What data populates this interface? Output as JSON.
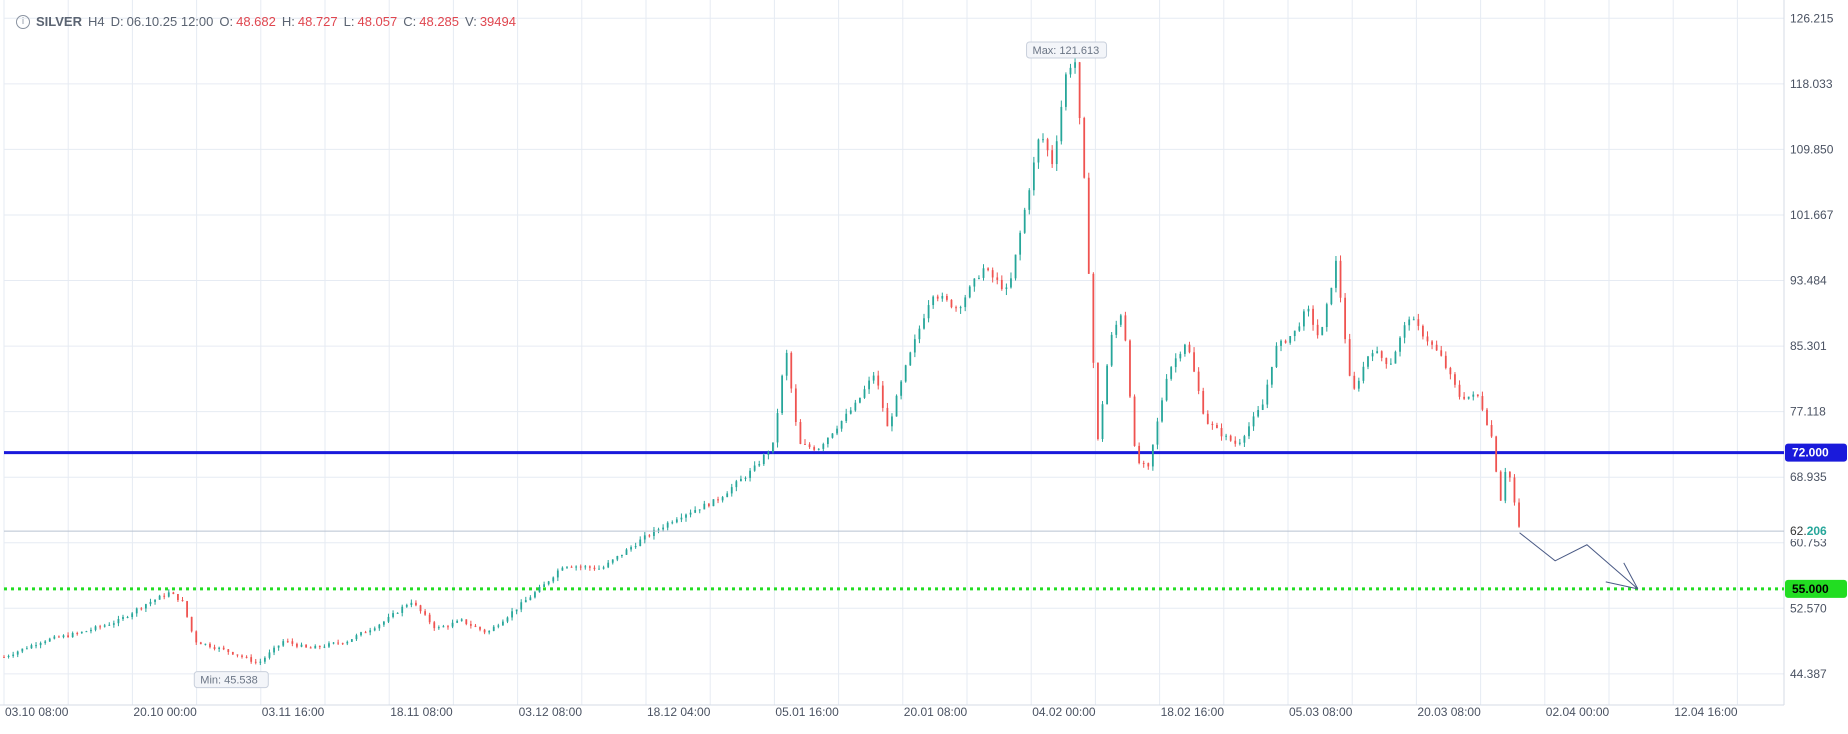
{
  "header": {
    "info_icon": "i",
    "symbol": "SILVER",
    "timeframe": "H4",
    "date_label": "D:",
    "date_value": "06.10.25 12:00",
    "open_label": "O:",
    "open_value": "48.682",
    "high_label": "H:",
    "high_value": "48.727",
    "low_label": "L:",
    "low_value": "48.057",
    "close_label": "C:",
    "close_value": "48.285",
    "volume_label": "V:",
    "volume_value": "39494"
  },
  "colors": {
    "up": "#26a69a",
    "down": "#ef5350",
    "grid": "#e6ebf3",
    "resistance": "#1a1adb",
    "target": "#22dd22",
    "arrow": "#4a5a85"
  },
  "chart_data": {
    "type": "candlestick",
    "symbol": "SILVER",
    "timeframe": "H4",
    "x_tick_labels": [
      "03.10 08:00",
      "20.10 00:00",
      "03.11 16:00",
      "18.11 08:00",
      "03.12 08:00",
      "18.12 04:00",
      "05.01 16:00",
      "20.01 08:00",
      "04.02 00:00",
      "18.02 16:00",
      "05.03 08:00",
      "20.03 08:00",
      "02.04 00:00",
      "12.04 16:00"
    ],
    "y_tick_labels": [
      "126.215",
      "118.033",
      "109.850",
      "101.667",
      "93.484",
      "85.301",
      "77.118",
      "68.935",
      "60.753",
      "52.570",
      "44.387"
    ],
    "ylim": [
      40.5,
      128.5
    ],
    "grid": true,
    "price_path": [
      {
        "t": 0,
        "p": 46.5
      },
      {
        "t": 3,
        "p": 48.5
      },
      {
        "t": 6,
        "p": 49.5
      },
      {
        "t": 9,
        "p": 51.0
      },
      {
        "t": 11,
        "p": 53.0
      },
      {
        "t": 13,
        "p": 54.5
      },
      {
        "t": 14,
        "p": 53.5
      },
      {
        "t": 15,
        "p": 48.5
      },
      {
        "t": 18,
        "p": 47.0
      },
      {
        "t": 20,
        "p": 45.7
      },
      {
        "t": 22,
        "p": 48.5
      },
      {
        "t": 24,
        "p": 47.5
      },
      {
        "t": 27,
        "p": 48.5
      },
      {
        "t": 30,
        "p": 51.0
      },
      {
        "t": 32,
        "p": 53.5
      },
      {
        "t": 34,
        "p": 50.0
      },
      {
        "t": 36,
        "p": 51.0
      },
      {
        "t": 38,
        "p": 49.5
      },
      {
        "t": 41,
        "p": 53.5
      },
      {
        "t": 42.5,
        "p": 55.5
      },
      {
        "t": 44,
        "p": 58.0
      },
      {
        "t": 47,
        "p": 57.5
      },
      {
        "t": 50,
        "p": 61.0
      },
      {
        "t": 53,
        "p": 64.0
      },
      {
        "t": 56,
        "p": 66.0
      },
      {
        "t": 59,
        "p": 70.0
      },
      {
        "t": 60.5,
        "p": 73.0
      },
      {
        "t": 61.5,
        "p": 85.0
      },
      {
        "t": 62.5,
        "p": 73.0
      },
      {
        "t": 64,
        "p": 72.5
      },
      {
        "t": 67,
        "p": 78.0
      },
      {
        "t": 68.5,
        "p": 82.0
      },
      {
        "t": 69.5,
        "p": 75.0
      },
      {
        "t": 71,
        "p": 83.0
      },
      {
        "t": 73,
        "p": 92.0
      },
      {
        "t": 75,
        "p": 90.0
      },
      {
        "t": 77,
        "p": 95.0
      },
      {
        "t": 79,
        "p": 92.0
      },
      {
        "t": 80,
        "p": 100.0
      },
      {
        "t": 81.5,
        "p": 112.0
      },
      {
        "t": 82.5,
        "p": 108.0
      },
      {
        "t": 83.5,
        "p": 119.0
      },
      {
        "t": 84.2,
        "p": 121.6
      },
      {
        "t": 85,
        "p": 105.0
      },
      {
        "t": 86,
        "p": 73.0
      },
      {
        "t": 87,
        "p": 86.0
      },
      {
        "t": 88,
        "p": 90.0
      },
      {
        "t": 89,
        "p": 71.0
      },
      {
        "t": 90,
        "p": 70.0
      },
      {
        "t": 91.5,
        "p": 82.0
      },
      {
        "t": 93,
        "p": 86.0
      },
      {
        "t": 94.5,
        "p": 76.0
      },
      {
        "t": 96,
        "p": 74.0
      },
      {
        "t": 97,
        "p": 73.0
      },
      {
        "t": 99,
        "p": 78.0
      },
      {
        "t": 100,
        "p": 85.0
      },
      {
        "t": 101.5,
        "p": 87.0
      },
      {
        "t": 102.5,
        "p": 90.0
      },
      {
        "t": 103.5,
        "p": 86.0
      },
      {
        "t": 104.8,
        "p": 96.0
      },
      {
        "t": 106,
        "p": 79.0
      },
      {
        "t": 107.5,
        "p": 85.0
      },
      {
        "t": 109,
        "p": 83.0
      },
      {
        "t": 110.5,
        "p": 89.0
      },
      {
        "t": 111.5,
        "p": 87.0
      },
      {
        "t": 113,
        "p": 84.0
      },
      {
        "t": 114.5,
        "p": 79.0
      },
      {
        "t": 116,
        "p": 79.0
      },
      {
        "t": 117,
        "p": 74.0
      },
      {
        "t": 117.7,
        "p": 66.0
      },
      {
        "t": 118.2,
        "p": 71.0
      },
      {
        "t": 119.2,
        "p": 62.2
      }
    ],
    "max_label": "Max: 121.613",
    "min_label": "Min: 45.538",
    "current_price_label_main": "62.",
    "current_price_label_tail": "206",
    "levels": [
      {
        "label": "72.000",
        "value": 72.0,
        "style": "solid"
      },
      {
        "label": "55.000",
        "value": 55.0,
        "style": "dotted"
      }
    ],
    "projection_arrow": [
      {
        "t": 119.2,
        "p": 62.0
      },
      {
        "t": 122,
        "p": 58.5
      },
      {
        "t": 124.5,
        "p": 60.5
      },
      {
        "t": 128.5,
        "p": 55.0
      }
    ]
  }
}
